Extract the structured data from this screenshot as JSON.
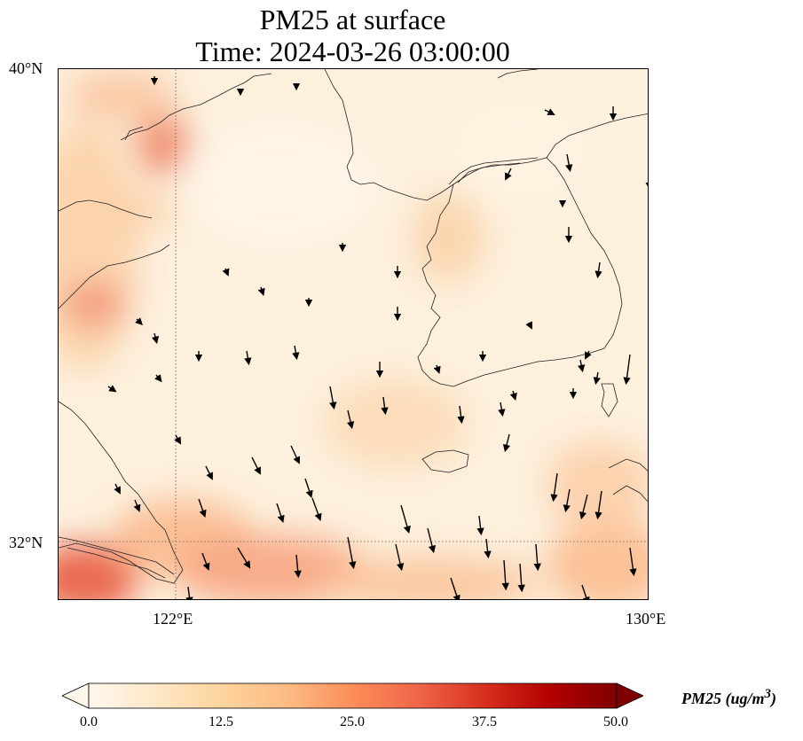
{
  "title": {
    "line1": "PM25 at surface",
    "line2": "Time: 2024-03-26 03:00:00"
  },
  "map": {
    "extent": {
      "lon_min": 119,
      "lon_max": 130,
      "lat_min": 31,
      "lat_max": 40
    },
    "gridlines": {
      "longitudes": [
        122
      ],
      "latitudes": [
        32
      ],
      "style": "dotted"
    },
    "lat_labels": [
      "40°N",
      "32°N"
    ],
    "lon_labels": [
      "122°E",
      "130°E"
    ],
    "field_colormap": "OrRd",
    "wind_arrow_color": "#000000"
  },
  "colorbar": {
    "label": "PM25 (ug/m",
    "label_superscript": "3",
    "label_close": ")",
    "min": 0,
    "max": 50,
    "extend": "both",
    "ticks": [
      "0.0",
      "12.5",
      "25.0",
      "37.5",
      "50.0"
    ],
    "colors": [
      "#fff7ec",
      "#fee8c8",
      "#fdd49e",
      "#fdbb84",
      "#fc8d59",
      "#ef6548",
      "#d7301f",
      "#b30000",
      "#7f0000"
    ]
  }
}
